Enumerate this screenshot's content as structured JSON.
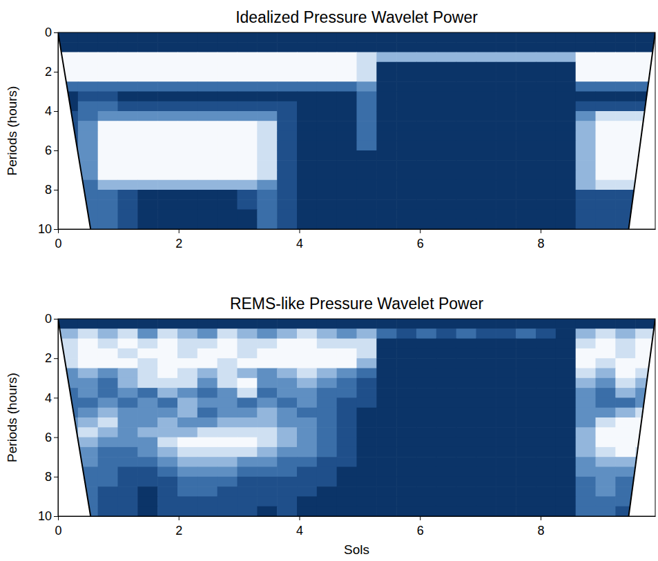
{
  "chart_data": [
    {
      "type": "heatmap",
      "title": "Idealized Pressure Wavelet Power",
      "y_label": "Periods (hours)",
      "xlim": [
        0,
        9.9
      ],
      "ylim": [
        0,
        10
      ],
      "xticks": [
        0,
        2,
        4,
        6,
        8
      ],
      "yticks": [
        0,
        2,
        4,
        6,
        8,
        10
      ],
      "colors": [
        "#0b3468",
        "#1f4f8a",
        "#3a6ea8",
        "#5f8fc2",
        "#93b6dc",
        "#cfe0f2",
        "#f6f9fd"
      ],
      "x": [
        0,
        0.33,
        0.66,
        0.99,
        1.32,
        1.65,
        1.98,
        2.31,
        2.64,
        2.97,
        3.3,
        3.63,
        3.96,
        4.29,
        4.62,
        4.95,
        5.28,
        5.61,
        5.94,
        6.27,
        6.6,
        6.93,
        7.26,
        7.59,
        7.92,
        8.25,
        8.58,
        8.91,
        9.24,
        9.57,
        9.9
      ],
      "y": [
        0,
        0.5,
        1,
        1.5,
        2,
        2.5,
        3,
        3.5,
        4,
        4.5,
        5,
        5.5,
        6,
        6.5,
        7,
        7.5,
        8,
        8.5,
        9,
        9.5,
        10
      ],
      "z": [
        [
          0,
          0,
          0,
          0,
          0,
          0,
          0,
          0,
          0,
          0,
          0,
          0,
          0,
          0,
          0,
          0,
          0,
          0,
          0,
          0,
          0,
          0,
          0,
          0,
          0,
          0,
          0,
          0,
          0,
          0
        ],
        [
          0,
          0,
          0,
          0,
          0,
          0,
          0,
          0,
          0,
          0,
          0,
          0,
          0,
          0,
          0,
          0,
          0,
          0,
          0,
          0,
          0,
          0,
          0,
          0,
          0,
          0,
          0,
          0,
          0,
          0
        ],
        [
          6,
          6,
          6,
          6,
          6,
          6,
          6,
          6,
          6,
          6,
          6,
          6,
          6,
          6,
          6,
          5,
          4,
          4,
          4,
          4,
          4,
          4,
          4,
          4,
          4,
          4,
          6,
          6,
          6,
          6
        ],
        [
          6,
          6,
          6,
          6,
          6,
          6,
          6,
          6,
          6,
          6,
          6,
          6,
          6,
          6,
          6,
          5,
          0,
          0,
          0,
          0,
          0,
          0,
          0,
          0,
          0,
          0,
          6,
          6,
          6,
          6
        ],
        [
          6,
          6,
          6,
          6,
          6,
          6,
          6,
          6,
          6,
          6,
          6,
          6,
          6,
          6,
          6,
          5,
          0,
          0,
          0,
          0,
          0,
          0,
          0,
          0,
          0,
          0,
          6,
          6,
          6,
          6
        ],
        [
          2,
          2,
          2,
          2,
          2,
          2,
          2,
          2,
          2,
          2,
          2,
          2,
          2,
          2,
          2,
          3,
          0,
          0,
          0,
          0,
          0,
          0,
          0,
          0,
          0,
          0,
          2,
          2,
          2,
          2
        ],
        [
          0,
          1,
          1,
          0,
          0,
          0,
          0,
          0,
          0,
          0,
          0,
          0,
          0,
          0,
          0,
          2,
          0,
          0,
          0,
          0,
          0,
          0,
          0,
          0,
          0,
          0,
          0,
          0,
          0,
          0
        ],
        [
          0,
          2,
          2,
          1,
          1,
          1,
          1,
          1,
          1,
          1,
          1,
          1,
          0,
          0,
          0,
          2,
          0,
          0,
          0,
          0,
          0,
          0,
          0,
          0,
          0,
          0,
          1,
          1,
          1,
          1
        ],
        [
          1,
          2,
          3,
          3,
          3,
          3,
          3,
          3,
          3,
          3,
          3,
          1,
          0,
          0,
          0,
          2,
          0,
          0,
          0,
          0,
          0,
          0,
          0,
          0,
          0,
          0,
          3,
          5,
          5,
          5
        ],
        [
          1,
          3,
          6,
          6,
          6,
          6,
          6,
          6,
          6,
          6,
          5,
          1,
          0,
          0,
          0,
          2,
          0,
          0,
          0,
          0,
          0,
          0,
          0,
          0,
          0,
          0,
          4,
          6,
          6,
          6
        ],
        [
          1,
          3,
          6,
          6,
          6,
          6,
          6,
          6,
          6,
          6,
          5,
          1,
          0,
          0,
          0,
          2,
          0,
          0,
          0,
          0,
          0,
          0,
          0,
          0,
          0,
          0,
          4,
          6,
          6,
          6
        ],
        [
          1,
          3,
          6,
          6,
          6,
          6,
          6,
          6,
          6,
          6,
          5,
          1,
          0,
          0,
          0,
          2,
          0,
          0,
          0,
          0,
          0,
          0,
          0,
          0,
          0,
          0,
          4,
          6,
          6,
          6
        ],
        [
          1,
          3,
          6,
          6,
          6,
          6,
          6,
          6,
          6,
          6,
          5,
          1,
          0,
          0,
          0,
          0,
          0,
          0,
          0,
          0,
          0,
          0,
          0,
          0,
          0,
          0,
          4,
          6,
          6,
          6
        ],
        [
          1,
          3,
          6,
          6,
          6,
          6,
          6,
          6,
          6,
          6,
          5,
          1,
          0,
          0,
          0,
          0,
          0,
          0,
          0,
          0,
          0,
          0,
          0,
          0,
          0,
          0,
          4,
          6,
          6,
          6
        ],
        [
          1,
          3,
          6,
          6,
          6,
          6,
          6,
          6,
          6,
          6,
          5,
          1,
          0,
          0,
          0,
          0,
          0,
          0,
          0,
          0,
          0,
          0,
          0,
          0,
          0,
          0,
          4,
          6,
          6,
          6
        ],
        [
          1,
          2,
          4,
          4,
          4,
          4,
          4,
          4,
          4,
          4,
          3,
          1,
          0,
          0,
          0,
          0,
          0,
          0,
          0,
          0,
          0,
          0,
          0,
          0,
          0,
          0,
          4,
          5,
          5,
          5
        ],
        [
          1,
          2,
          2,
          1,
          0,
          0,
          0,
          0,
          0,
          1,
          2,
          1,
          0,
          0,
          0,
          0,
          0,
          0,
          0,
          0,
          0,
          0,
          0,
          0,
          0,
          0,
          1,
          1,
          1,
          1
        ],
        [
          1,
          2,
          2,
          1,
          0,
          0,
          0,
          0,
          0,
          1,
          2,
          1,
          0,
          0,
          0,
          0,
          0,
          0,
          0,
          0,
          0,
          0,
          0,
          0,
          0,
          0,
          1,
          1,
          1,
          1
        ],
        [
          1,
          2,
          2,
          1,
          0,
          0,
          0,
          0,
          0,
          0,
          2,
          1,
          0,
          0,
          0,
          0,
          0,
          0,
          0,
          0,
          0,
          0,
          0,
          0,
          0,
          0,
          1,
          1,
          1,
          1
        ],
        [
          1,
          2,
          2,
          1,
          0,
          0,
          0,
          0,
          0,
          0,
          2,
          1,
          0,
          0,
          0,
          0,
          0,
          0,
          0,
          0,
          0,
          0,
          0,
          0,
          0,
          0,
          1,
          1,
          1,
          1
        ]
      ],
      "coi_left": {
        "x": [
          0,
          0.54
        ],
        "y": [
          0,
          10
        ]
      },
      "coi_right": {
        "x": [
          9.9,
          9.46
        ],
        "y": [
          0,
          10
        ]
      }
    },
    {
      "type": "heatmap",
      "title": "REMS-like Pressure Wavelet Power",
      "x_label": "Sols",
      "y_label": "Periods (hours)",
      "xlim": [
        0,
        9.9
      ],
      "ylim": [
        0,
        10
      ],
      "xticks": [
        0,
        2,
        4,
        6,
        8
      ],
      "yticks": [
        0,
        2,
        4,
        6,
        8,
        10
      ],
      "colors": [
        "#0b3468",
        "#1f4f8a",
        "#3a6ea8",
        "#5f8fc2",
        "#93b6dc",
        "#cfe0f2",
        "#f6f9fd"
      ],
      "x": [
        0,
        0.33,
        0.66,
        0.99,
        1.32,
        1.65,
        1.98,
        2.31,
        2.64,
        2.97,
        3.3,
        3.63,
        3.96,
        4.29,
        4.62,
        4.95,
        5.28,
        5.61,
        5.94,
        6.27,
        6.6,
        6.93,
        7.26,
        7.59,
        7.92,
        8.25,
        8.58,
        8.91,
        9.24,
        9.57,
        9.9
      ],
      "y": [
        0,
        0.5,
        1,
        1.5,
        2,
        2.5,
        3,
        3.5,
        4,
        4.5,
        5,
        5.5,
        6,
        6.5,
        7,
        7.5,
        8,
        8.5,
        9,
        9.5,
        10
      ],
      "z": [
        [
          0,
          0,
          0,
          0,
          0,
          0,
          0,
          0,
          0,
          0,
          0,
          0,
          0,
          0,
          0,
          0,
          0,
          0,
          0,
          0,
          0,
          0,
          0,
          0,
          0,
          0,
          0,
          0,
          0,
          0
        ],
        [
          4,
          5,
          4,
          5,
          3,
          5,
          4,
          3,
          5,
          4,
          3,
          4,
          5,
          4,
          3,
          4,
          2,
          1,
          2,
          1,
          2,
          1,
          1,
          2,
          1,
          0,
          4,
          5,
          4,
          5
        ],
        [
          5,
          6,
          5,
          6,
          5,
          6,
          5,
          5,
          6,
          5,
          5,
          6,
          6,
          5,
          5,
          5,
          0,
          0,
          0,
          0,
          0,
          0,
          0,
          0,
          0,
          0,
          5,
          6,
          5,
          6
        ],
        [
          5,
          6,
          6,
          5,
          6,
          6,
          5,
          6,
          6,
          5,
          6,
          6,
          6,
          6,
          6,
          5,
          0,
          0,
          0,
          0,
          0,
          0,
          0,
          0,
          0,
          0,
          6,
          6,
          5,
          6
        ],
        [
          5,
          6,
          6,
          6,
          5,
          6,
          6,
          6,
          5,
          6,
          6,
          6,
          6,
          6,
          6,
          4,
          0,
          0,
          0,
          0,
          0,
          0,
          0,
          0,
          0,
          0,
          6,
          5,
          6,
          6
        ],
        [
          3,
          4,
          3,
          4,
          5,
          6,
          5,
          4,
          5,
          4,
          3,
          4,
          5,
          4,
          3,
          2,
          0,
          0,
          0,
          0,
          0,
          0,
          0,
          0,
          0,
          0,
          5,
          4,
          6,
          5
        ],
        [
          3,
          3,
          2,
          4,
          5,
          5,
          5,
          3,
          5,
          6,
          3,
          3,
          4,
          3,
          2,
          1,
          0,
          0,
          0,
          0,
          0,
          0,
          0,
          0,
          0,
          0,
          4,
          3,
          5,
          4
        ],
        [
          2,
          3,
          2,
          3,
          2,
          4,
          3,
          2,
          3,
          5,
          2,
          3,
          3,
          2,
          2,
          1,
          0,
          0,
          0,
          0,
          0,
          0,
          0,
          0,
          0,
          0,
          3,
          2,
          4,
          3
        ],
        [
          2,
          2,
          3,
          2,
          3,
          2,
          4,
          3,
          3,
          2,
          3,
          2,
          3,
          2,
          1,
          1,
          0,
          0,
          0,
          0,
          0,
          0,
          0,
          0,
          0,
          0,
          3,
          2,
          2,
          3
        ],
        [
          2,
          3,
          4,
          3,
          3,
          3,
          4,
          2,
          3,
          3,
          4,
          3,
          2,
          2,
          1,
          0,
          0,
          0,
          0,
          0,
          0,
          0,
          0,
          0,
          0,
          0,
          3,
          3,
          4,
          5
        ],
        [
          3,
          4,
          5,
          3,
          3,
          4,
          3,
          3,
          4,
          4,
          4,
          3,
          3,
          2,
          1,
          0,
          0,
          0,
          0,
          0,
          0,
          0,
          0,
          0,
          0,
          0,
          3,
          5,
          6,
          6
        ],
        [
          3,
          5,
          4,
          3,
          4,
          4,
          4,
          5,
          5,
          5,
          5,
          4,
          3,
          2,
          1,
          0,
          0,
          0,
          0,
          0,
          0,
          0,
          0,
          0,
          0,
          0,
          4,
          6,
          6,
          6
        ],
        [
          3,
          4,
          3,
          3,
          3,
          5,
          6,
          6,
          6,
          6,
          5,
          4,
          3,
          2,
          1,
          0,
          0,
          0,
          0,
          0,
          0,
          0,
          0,
          0,
          0,
          0,
          4,
          6,
          6,
          6
        ],
        [
          2,
          3,
          2,
          2,
          3,
          4,
          5,
          5,
          5,
          5,
          4,
          3,
          3,
          2,
          1,
          0,
          0,
          0,
          0,
          0,
          0,
          0,
          0,
          0,
          0,
          0,
          4,
          5,
          6,
          5
        ],
        [
          2,
          3,
          2,
          2,
          2,
          3,
          4,
          4,
          4,
          3,
          3,
          2,
          2,
          1,
          1,
          0,
          0,
          0,
          0,
          0,
          0,
          0,
          0,
          0,
          0,
          0,
          3,
          4,
          4,
          3
        ],
        [
          2,
          2,
          2,
          1,
          1,
          2,
          3,
          3,
          3,
          2,
          2,
          2,
          1,
          1,
          0,
          0,
          0,
          0,
          0,
          0,
          0,
          0,
          0,
          0,
          0,
          0,
          3,
          3,
          3,
          2
        ],
        [
          2,
          2,
          2,
          1,
          1,
          1,
          2,
          2,
          2,
          1,
          1,
          1,
          1,
          1,
          0,
          0,
          0,
          0,
          0,
          0,
          0,
          0,
          0,
          0,
          0,
          0,
          2,
          3,
          2,
          2
        ],
        [
          2,
          2,
          1,
          1,
          0,
          1,
          2,
          2,
          1,
          1,
          1,
          1,
          1,
          0,
          0,
          0,
          0,
          0,
          0,
          0,
          0,
          0,
          0,
          0,
          0,
          0,
          2,
          3,
          2,
          1
        ],
        [
          1,
          2,
          1,
          1,
          0,
          1,
          1,
          1,
          1,
          1,
          1,
          1,
          0,
          0,
          0,
          0,
          0,
          0,
          0,
          0,
          0,
          0,
          0,
          0,
          0,
          0,
          2,
          2,
          2,
          1
        ],
        [
          1,
          2,
          1,
          1,
          0,
          1,
          1,
          1,
          1,
          1,
          0,
          1,
          0,
          0,
          0,
          0,
          0,
          0,
          0,
          0,
          0,
          0,
          0,
          0,
          0,
          0,
          2,
          2,
          1,
          1
        ]
      ],
      "coi_left": {
        "x": [
          0,
          0.54
        ],
        "y": [
          0,
          10
        ]
      },
      "coi_right": {
        "x": [
          9.9,
          9.46
        ],
        "y": [
          0,
          10
        ]
      }
    }
  ]
}
